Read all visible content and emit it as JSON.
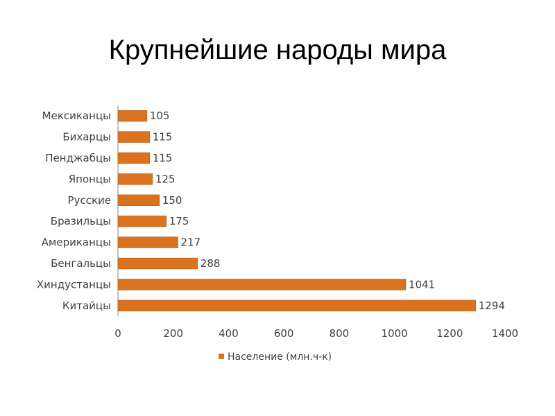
{
  "slide": {
    "title": "Крупнейшие народы мира"
  },
  "chart_data": {
    "type": "bar",
    "orientation": "horizontal",
    "categories": [
      "Мексиканцы",
      "Бихарцы",
      "Пенджабцы",
      "Японцы",
      "Русские",
      "Бразильцы",
      "Американцы",
      "Бенгальцы",
      "Хиндустанцы",
      "Китайцы"
    ],
    "series": [
      {
        "name": "Население (млн.ч-к)",
        "values": [
          105,
          115,
          115,
          125,
          150,
          175,
          217,
          288,
          1041,
          1294
        ],
        "color": "#D9731F"
      }
    ],
    "xlim": [
      0,
      1400
    ],
    "xticks": [
      0,
      200,
      400,
      600,
      800,
      1000,
      1200,
      1400
    ],
    "data_labels": true,
    "grid": false,
    "legend_position": "bottom"
  }
}
